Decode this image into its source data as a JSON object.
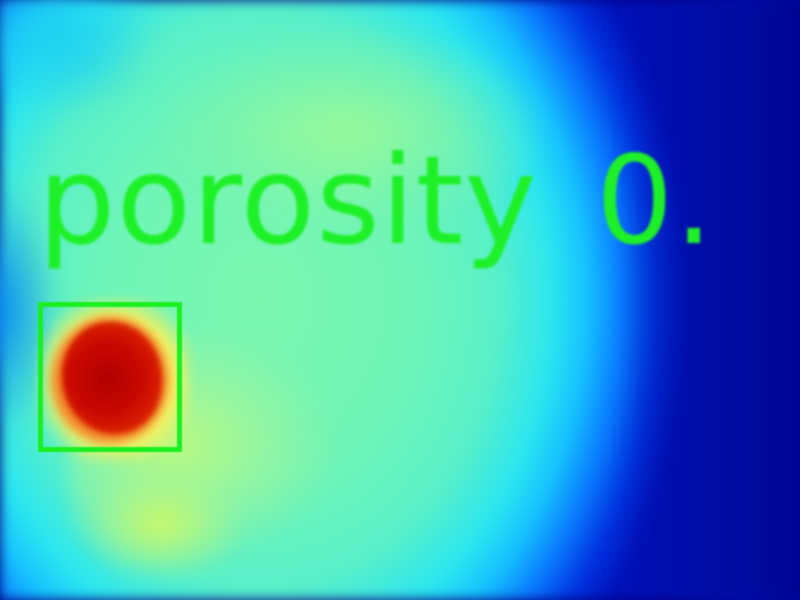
{
  "overlay": {
    "label": "porosity",
    "value": "0."
  },
  "colors": {
    "box": "#1af020",
    "text": "#1ef028",
    "hot": "#c80800",
    "field": "#6ff5b8",
    "cold": "#000090"
  }
}
